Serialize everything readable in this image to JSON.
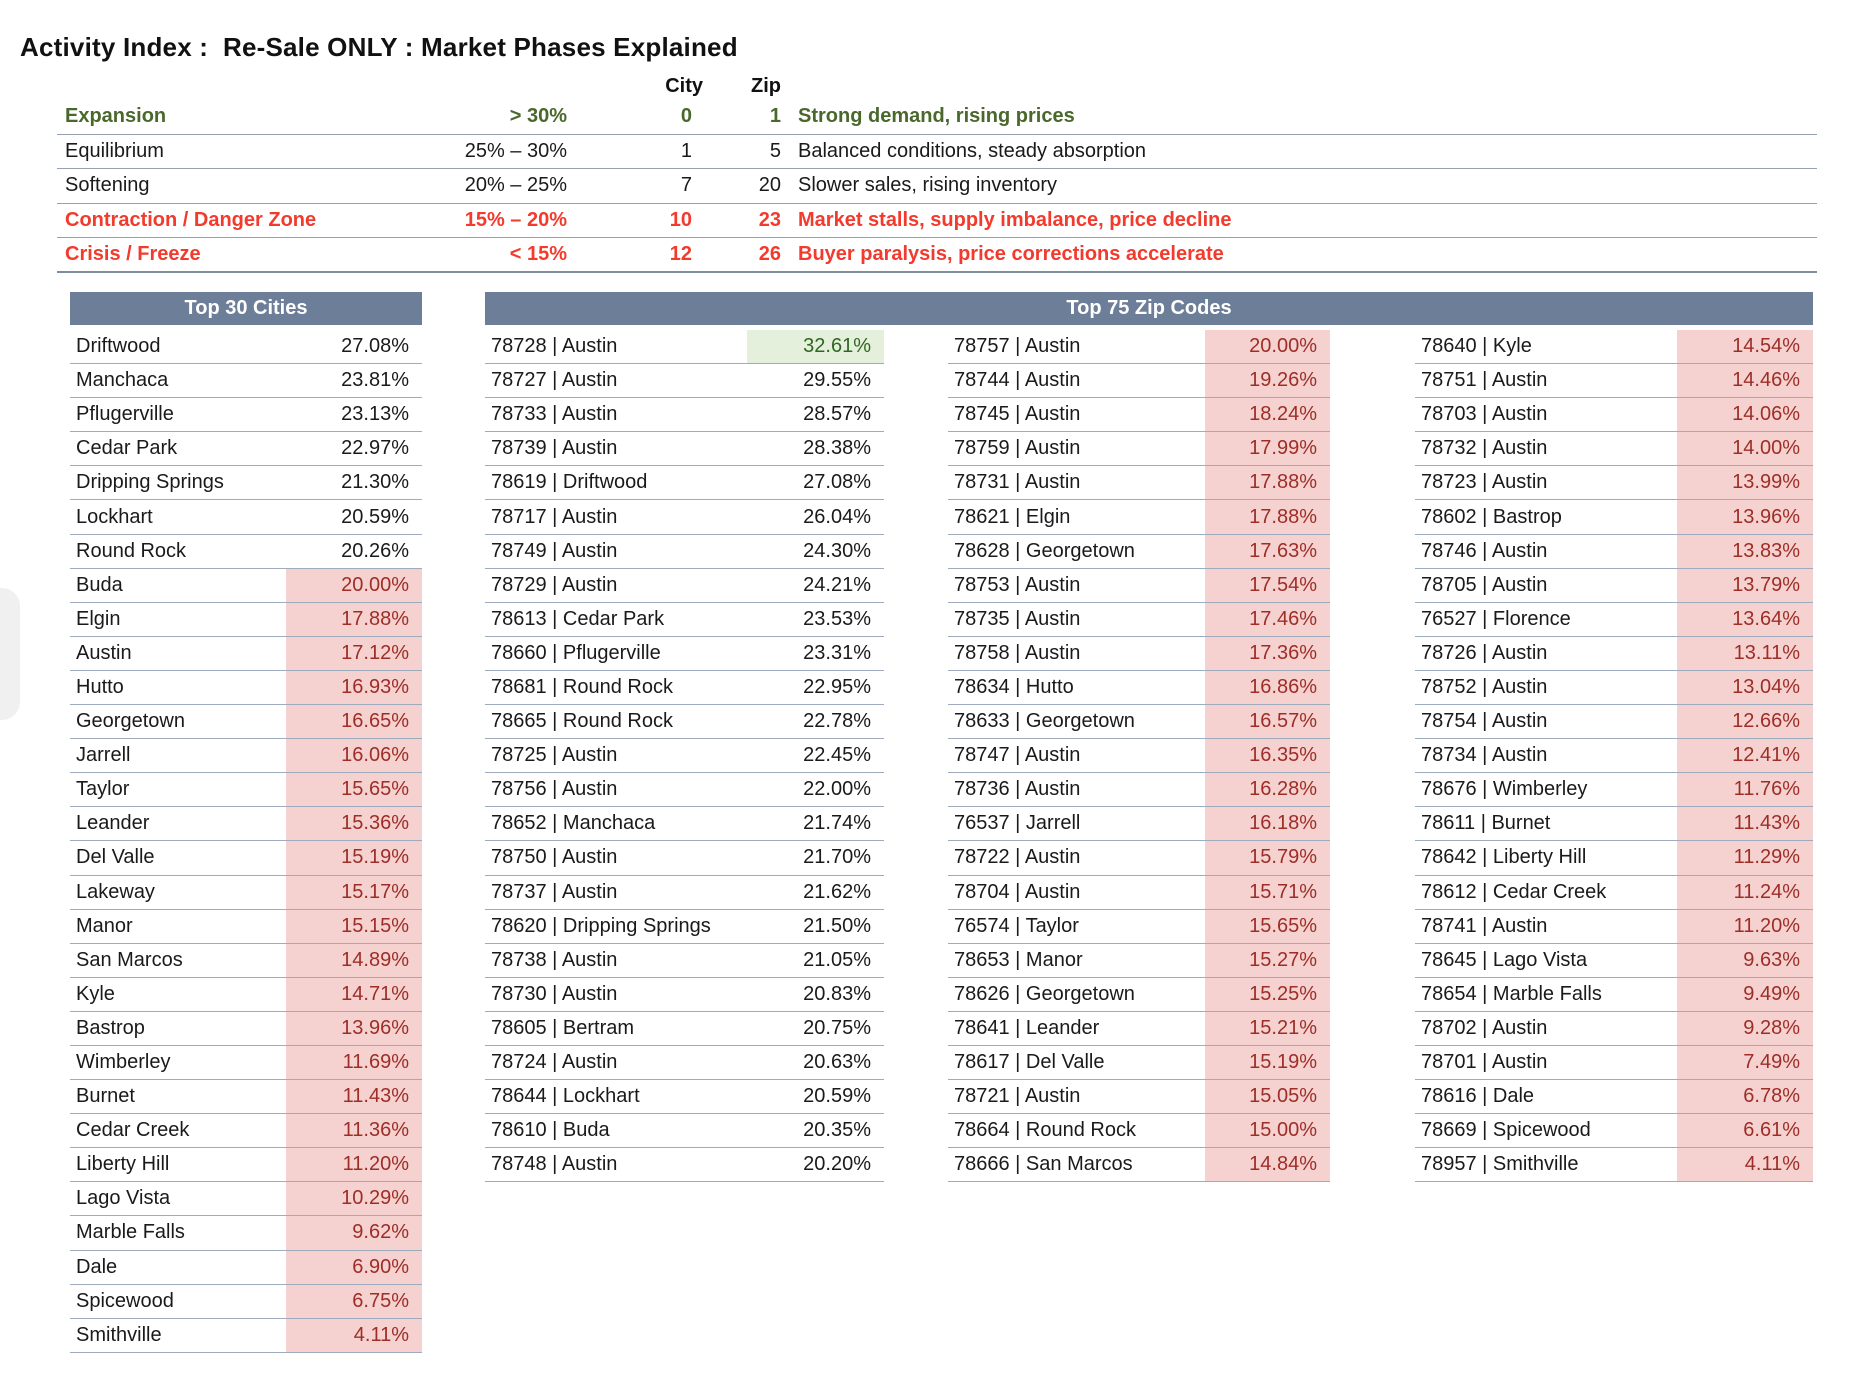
{
  "title": "Activity Index :  Re-Sale ONLY : Market Phases Explained",
  "colors": {
    "section_bar_bg": "#6d7e98",
    "good_cell_bg": "#e4f0dc",
    "good_cell_text": "#2e6820",
    "bad_cell_bg": "#f5d2cf",
    "bad_cell_text": "#9e2d27",
    "phase_green_text": "#4a682c",
    "phase_red_text": "#f23a2d"
  },
  "phase_table": {
    "col_headers": {
      "city": "City",
      "zip": "Zip"
    },
    "rows": [
      {
        "name": "Expansion",
        "range": "> 30%",
        "city": "0",
        "zip": "1",
        "desc": "Strong demand, rising prices",
        "style": "green"
      },
      {
        "name": "Equilibrium",
        "range": "25% – 30%",
        "city": "1",
        "zip": "5",
        "desc": "Balanced conditions, steady absorption",
        "style": "normal"
      },
      {
        "name": "Softening",
        "range": "20% – 25%",
        "city": "7",
        "zip": "20",
        "desc": "Slower sales, rising inventory",
        "style": "normal"
      },
      {
        "name": "Contraction / Danger Zone",
        "range": "15% – 20%",
        "city": "10",
        "zip": "23",
        "desc": "Market stalls, supply imbalance, price decline",
        "style": "red"
      },
      {
        "name": "Crisis / Freeze",
        "range": "< 15%",
        "city": "12",
        "zip": "26",
        "desc": "Buyer paralysis, price corrections accelerate",
        "style": "red"
      }
    ]
  },
  "cities": {
    "header": "Top 30 Cities",
    "rows": [
      {
        "name": "Driftwood",
        "value": "27.08%",
        "tone": "none"
      },
      {
        "name": "Manchaca",
        "value": "23.81%",
        "tone": "none"
      },
      {
        "name": "Pflugerville",
        "value": "23.13%",
        "tone": "none"
      },
      {
        "name": "Cedar Park",
        "value": "22.97%",
        "tone": "none"
      },
      {
        "name": "Dripping Springs",
        "value": "21.30%",
        "tone": "none"
      },
      {
        "name": "Lockhart",
        "value": "20.59%",
        "tone": "none"
      },
      {
        "name": "Round Rock",
        "value": "20.26%",
        "tone": "none"
      },
      {
        "name": "Buda",
        "value": "20.00%",
        "tone": "bad"
      },
      {
        "name": "Elgin",
        "value": "17.88%",
        "tone": "bad"
      },
      {
        "name": "Austin",
        "value": "17.12%",
        "tone": "bad"
      },
      {
        "name": "Hutto",
        "value": "16.93%",
        "tone": "bad"
      },
      {
        "name": "Georgetown",
        "value": "16.65%",
        "tone": "bad"
      },
      {
        "name": "Jarrell",
        "value": "16.06%",
        "tone": "bad"
      },
      {
        "name": "Taylor",
        "value": "15.65%",
        "tone": "bad"
      },
      {
        "name": "Leander",
        "value": "15.36%",
        "tone": "bad"
      },
      {
        "name": "Del Valle",
        "value": "15.19%",
        "tone": "bad"
      },
      {
        "name": "Lakeway",
        "value": "15.17%",
        "tone": "bad"
      },
      {
        "name": "Manor",
        "value": "15.15%",
        "tone": "bad"
      },
      {
        "name": "San Marcos",
        "value": "14.89%",
        "tone": "bad"
      },
      {
        "name": "Kyle",
        "value": "14.71%",
        "tone": "bad"
      },
      {
        "name": "Bastrop",
        "value": "13.96%",
        "tone": "bad"
      },
      {
        "name": "Wimberley",
        "value": "11.69%",
        "tone": "bad"
      },
      {
        "name": "Burnet",
        "value": "11.43%",
        "tone": "bad"
      },
      {
        "name": "Cedar Creek",
        "value": "11.36%",
        "tone": "bad"
      },
      {
        "name": "Liberty Hill",
        "value": "11.20%",
        "tone": "bad"
      },
      {
        "name": "Lago Vista",
        "value": "10.29%",
        "tone": "bad"
      },
      {
        "name": "Marble Falls",
        "value": "9.62%",
        "tone": "bad"
      },
      {
        "name": "Dale",
        "value": "6.90%",
        "tone": "bad"
      },
      {
        "name": "Spicewood",
        "value": "6.75%",
        "tone": "bad"
      },
      {
        "name": "Smithville",
        "value": "4.11%",
        "tone": "bad"
      }
    ]
  },
  "zips": {
    "header": "Top 75 Zip Codes",
    "columns": [
      [
        {
          "label": "78728 | Austin",
          "value": "32.61%",
          "tone": "good"
        },
        {
          "label": "78727 | Austin",
          "value": "29.55%",
          "tone": "none"
        },
        {
          "label": "78733 | Austin",
          "value": "28.57%",
          "tone": "none"
        },
        {
          "label": "78739 | Austin",
          "value": "28.38%",
          "tone": "none"
        },
        {
          "label": "78619 | Driftwood",
          "value": "27.08%",
          "tone": "none"
        },
        {
          "label": "78717 | Austin",
          "value": "26.04%",
          "tone": "none"
        },
        {
          "label": "78749 | Austin",
          "value": "24.30%",
          "tone": "none"
        },
        {
          "label": "78729 | Austin",
          "value": "24.21%",
          "tone": "none"
        },
        {
          "label": "78613 | Cedar Park",
          "value": "23.53%",
          "tone": "none"
        },
        {
          "label": "78660 | Pflugerville",
          "value": "23.31%",
          "tone": "none"
        },
        {
          "label": "78681 | Round Rock",
          "value": "22.95%",
          "tone": "none"
        },
        {
          "label": "78665 | Round Rock",
          "value": "22.78%",
          "tone": "none"
        },
        {
          "label": "78725 | Austin",
          "value": "22.45%",
          "tone": "none"
        },
        {
          "label": "78756 | Austin",
          "value": "22.00%",
          "tone": "none"
        },
        {
          "label": "78652 | Manchaca",
          "value": "21.74%",
          "tone": "none"
        },
        {
          "label": "78750 | Austin",
          "value": "21.70%",
          "tone": "none"
        },
        {
          "label": "78737 | Austin",
          "value": "21.62%",
          "tone": "none"
        },
        {
          "label": "78620 | Dripping Springs",
          "value": "21.50%",
          "tone": "none"
        },
        {
          "label": "78738 | Austin",
          "value": "21.05%",
          "tone": "none"
        },
        {
          "label": "78730 | Austin",
          "value": "20.83%",
          "tone": "none"
        },
        {
          "label": "78605 | Bertram",
          "value": "20.75%",
          "tone": "none"
        },
        {
          "label": "78724 | Austin",
          "value": "20.63%",
          "tone": "none"
        },
        {
          "label": "78644 | Lockhart",
          "value": "20.59%",
          "tone": "none"
        },
        {
          "label": "78610 | Buda",
          "value": "20.35%",
          "tone": "none"
        },
        {
          "label": "78748 | Austin",
          "value": "20.20%",
          "tone": "none"
        }
      ],
      [
        {
          "label": "78757 | Austin",
          "value": "20.00%",
          "tone": "bad"
        },
        {
          "label": "78744 | Austin",
          "value": "19.26%",
          "tone": "bad"
        },
        {
          "label": "78745 | Austin",
          "value": "18.24%",
          "tone": "bad"
        },
        {
          "label": "78759 | Austin",
          "value": "17.99%",
          "tone": "bad"
        },
        {
          "label": "78731 | Austin",
          "value": "17.88%",
          "tone": "bad"
        },
        {
          "label": "78621 | Elgin",
          "value": "17.88%",
          "tone": "bad"
        },
        {
          "label": "78628 | Georgetown",
          "value": "17.63%",
          "tone": "bad"
        },
        {
          "label": "78753 | Austin",
          "value": "17.54%",
          "tone": "bad"
        },
        {
          "label": "78735 | Austin",
          "value": "17.46%",
          "tone": "bad"
        },
        {
          "label": "78758 | Austin",
          "value": "17.36%",
          "tone": "bad"
        },
        {
          "label": "78634 | Hutto",
          "value": "16.86%",
          "tone": "bad"
        },
        {
          "label": "78633 | Georgetown",
          "value": "16.57%",
          "tone": "bad"
        },
        {
          "label": "78747 | Austin",
          "value": "16.35%",
          "tone": "bad"
        },
        {
          "label": "78736 | Austin",
          "value": "16.28%",
          "tone": "bad"
        },
        {
          "label": "76537 | Jarrell",
          "value": "16.18%",
          "tone": "bad"
        },
        {
          "label": "78722 | Austin",
          "value": "15.79%",
          "tone": "bad"
        },
        {
          "label": "78704 | Austin",
          "value": "15.71%",
          "tone": "bad"
        },
        {
          "label": "76574 | Taylor",
          "value": "15.65%",
          "tone": "bad"
        },
        {
          "label": "78653 | Manor",
          "value": "15.27%",
          "tone": "bad"
        },
        {
          "label": "78626 | Georgetown",
          "value": "15.25%",
          "tone": "bad"
        },
        {
          "label": "78641 | Leander",
          "value": "15.21%",
          "tone": "bad"
        },
        {
          "label": "78617 | Del Valle",
          "value": "15.19%",
          "tone": "bad"
        },
        {
          "label": "78721 | Austin",
          "value": "15.05%",
          "tone": "bad"
        },
        {
          "label": "78664 | Round Rock",
          "value": "15.00%",
          "tone": "bad"
        },
        {
          "label": "78666 | San Marcos",
          "value": "14.84%",
          "tone": "bad"
        }
      ],
      [
        {
          "label": "78640 | Kyle",
          "value": "14.54%",
          "tone": "bad"
        },
        {
          "label": "78751 | Austin",
          "value": "14.46%",
          "tone": "bad"
        },
        {
          "label": "78703 | Austin",
          "value": "14.06%",
          "tone": "bad"
        },
        {
          "label": "78732 | Austin",
          "value": "14.00%",
          "tone": "bad"
        },
        {
          "label": "78723 | Austin",
          "value": "13.99%",
          "tone": "bad"
        },
        {
          "label": "78602 | Bastrop",
          "value": "13.96%",
          "tone": "bad"
        },
        {
          "label": "78746 | Austin",
          "value": "13.83%",
          "tone": "bad"
        },
        {
          "label": "78705 | Austin",
          "value": "13.79%",
          "tone": "bad"
        },
        {
          "label": "76527 | Florence",
          "value": "13.64%",
          "tone": "bad"
        },
        {
          "label": "78726 | Austin",
          "value": "13.11%",
          "tone": "bad"
        },
        {
          "label": "78752 | Austin",
          "value": "13.04%",
          "tone": "bad"
        },
        {
          "label": "78754 | Austin",
          "value": "12.66%",
          "tone": "bad"
        },
        {
          "label": "78734 | Austin",
          "value": "12.41%",
          "tone": "bad"
        },
        {
          "label": "78676 | Wimberley",
          "value": "11.76%",
          "tone": "bad"
        },
        {
          "label": "78611 | Burnet",
          "value": "11.43%",
          "tone": "bad"
        },
        {
          "label": "78642 | Liberty Hill",
          "value": "11.29%",
          "tone": "bad"
        },
        {
          "label": "78612 | Cedar Creek",
          "value": "11.24%",
          "tone": "bad"
        },
        {
          "label": "78741 | Austin",
          "value": "11.20%",
          "tone": "bad"
        },
        {
          "label": "78645 | Lago Vista",
          "value": "9.63%",
          "tone": "bad"
        },
        {
          "label": "78654 | Marble Falls",
          "value": "9.49%",
          "tone": "bad"
        },
        {
          "label": "78702 | Austin",
          "value": "9.28%",
          "tone": "bad"
        },
        {
          "label": "78701 | Austin",
          "value": "7.49%",
          "tone": "bad"
        },
        {
          "label": "78616 | Dale",
          "value": "6.78%",
          "tone": "bad"
        },
        {
          "label": "78669 | Spicewood",
          "value": "6.61%",
          "tone": "bad"
        },
        {
          "label": "78957 | Smithville",
          "value": "4.11%",
          "tone": "bad"
        }
      ]
    ]
  }
}
